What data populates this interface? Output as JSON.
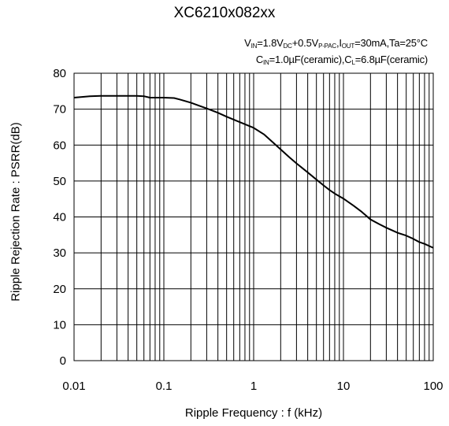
{
  "chart_data": {
    "type": "line",
    "title": "XC6210x082xx",
    "conditions": {
      "line1": {
        "v": "V",
        "v_sub": "IN",
        "eq1": "=1.8V",
        "dc_sub": "DC",
        "plus": "+0.5V",
        "pp_sub": "P-PAC",
        "comma1": ",I",
        "out_sub": "OUT",
        "rest": "=30mA,Ta=25°C"
      },
      "line2": {
        "c": "C",
        "cin_sub": "IN",
        "mid": "=1.0µF(ceramic),C",
        "cl_sub": "L",
        "rest": "=6.8µF(ceramic)"
      }
    },
    "xlabel": "Ripple Frequency : f  (kHz)",
    "ylabel": "Ripple Rejection Rate : PSRR(dB)",
    "x_scale": "log",
    "xlim": [
      0.01,
      100
    ],
    "ylim": [
      0,
      80
    ],
    "x_ticks": [
      {
        "value": 0.01,
        "label": "0.01"
      },
      {
        "value": 0.1,
        "label": "0.1"
      },
      {
        "value": 1,
        "label": "1"
      },
      {
        "value": 10,
        "label": "10"
      },
      {
        "value": 100,
        "label": "100"
      }
    ],
    "y_ticks": [
      0,
      10,
      20,
      30,
      40,
      50,
      60,
      70,
      80
    ],
    "grid": true,
    "series": [
      {
        "color": "#000000",
        "points": [
          [
            0.01,
            73.2
          ],
          [
            0.015,
            73.6
          ],
          [
            0.02,
            73.7
          ],
          [
            0.03,
            73.7
          ],
          [
            0.05,
            73.7
          ],
          [
            0.06,
            73.6
          ],
          [
            0.07,
            73.2
          ],
          [
            0.1,
            73.2
          ],
          [
            0.13,
            73.1
          ],
          [
            0.15,
            72.7
          ],
          [
            0.2,
            71.8
          ],
          [
            0.3,
            70.2
          ],
          [
            0.4,
            69.0
          ],
          [
            0.5,
            67.9
          ],
          [
            0.7,
            66.4
          ],
          [
            1,
            64.8
          ],
          [
            1.3,
            63.0
          ],
          [
            1.6,
            61.0
          ],
          [
            2,
            58.8
          ],
          [
            2.5,
            56.6
          ],
          [
            3,
            54.9
          ],
          [
            4,
            52.4
          ],
          [
            5,
            50.4
          ],
          [
            6,
            48.8
          ],
          [
            7,
            47.5
          ],
          [
            8,
            46.5
          ],
          [
            10,
            45.1
          ],
          [
            13,
            43.1
          ],
          [
            16,
            41.4
          ],
          [
            20,
            39.3
          ],
          [
            25,
            38.0
          ],
          [
            30,
            37.0
          ],
          [
            40,
            35.6
          ],
          [
            50,
            34.8
          ],
          [
            60,
            33.9
          ],
          [
            70,
            33.0
          ],
          [
            80,
            32.5
          ],
          [
            100,
            31.4
          ]
        ]
      }
    ]
  }
}
